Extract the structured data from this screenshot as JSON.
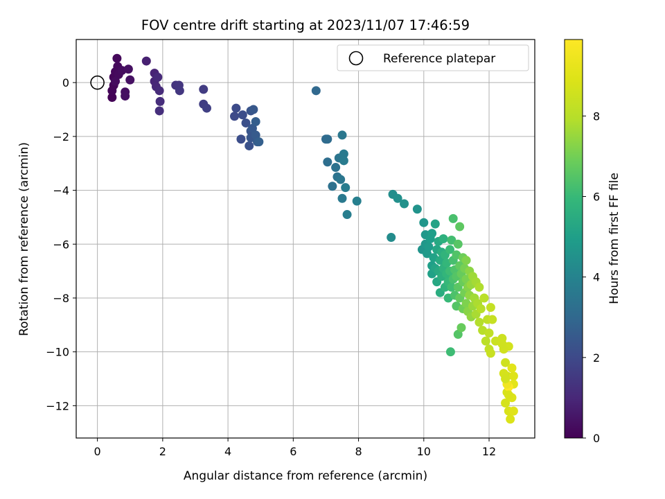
{
  "chart_data": {
    "type": "scatter",
    "title": "FOV centre drift starting at 2023/11/07 17:46:59",
    "xlabel": "Angular distance from reference (arcmin)",
    "ylabel": "Rotation from reference (arcmin)",
    "xlim": [
      -0.65,
      13.4
    ],
    "ylim": [
      -13.2,
      1.6
    ],
    "xticks": [
      0,
      2,
      4,
      6,
      8,
      10,
      12
    ],
    "xtick_labels": [
      "0",
      "2",
      "4",
      "6",
      "8",
      "10",
      "12"
    ],
    "yticks": [
      0,
      -2,
      -4,
      -6,
      -8,
      -10,
      -12
    ],
    "ytick_labels": [
      "0",
      "−2",
      "−4",
      "−6",
      "−8",
      "−10",
      "−12"
    ],
    "grid": true,
    "legend": {
      "position": "top-right",
      "entries": [
        "Reference platepar"
      ]
    },
    "reference_point": {
      "x": 0,
      "y": 0
    },
    "colorbar": {
      "label": "Hours from first FF file",
      "colormap": "viridis",
      "min": 0,
      "max": 9.9,
      "ticks": [
        0,
        2,
        4,
        6,
        8
      ],
      "tick_labels": [
        "0",
        "2",
        "4",
        "6",
        "8"
      ]
    },
    "point_columns": [
      "x",
      "y",
      "hours"
    ],
    "points": [
      [
        0.45,
        -0.55,
        0.05
      ],
      [
        0.45,
        -0.3,
        0.1
      ],
      [
        0.5,
        -0.1,
        0.12
      ],
      [
        0.5,
        0.2,
        0.15
      ],
      [
        0.55,
        0.4,
        0.18
      ],
      [
        0.6,
        0.9,
        0.2
      ],
      [
        0.62,
        0.6,
        0.22
      ],
      [
        0.65,
        0.3,
        0.25
      ],
      [
        0.55,
        0.05,
        0.28
      ],
      [
        0.75,
        0.45,
        0.3
      ],
      [
        0.85,
        -0.35,
        0.32
      ],
      [
        0.85,
        -0.5,
        0.35
      ],
      [
        0.95,
        0.5,
        0.38
      ],
      [
        1.0,
        0.1,
        0.4
      ],
      [
        1.5,
        0.8,
        0.8
      ],
      [
        1.75,
        0.35,
        0.9
      ],
      [
        1.75,
        0.05,
        0.95
      ],
      [
        1.8,
        -0.15,
        1.0
      ],
      [
        1.85,
        0.2,
        1.05
      ],
      [
        1.9,
        -0.3,
        1.1
      ],
      [
        1.92,
        -0.7,
        1.15
      ],
      [
        1.9,
        -1.05,
        1.2
      ],
      [
        2.4,
        -0.1,
        1.35
      ],
      [
        2.5,
        -0.1,
        1.4
      ],
      [
        2.52,
        -0.3,
        1.45
      ],
      [
        3.25,
        -0.25,
        1.6
      ],
      [
        3.25,
        -0.8,
        1.65
      ],
      [
        3.35,
        -0.95,
        1.7
      ],
      [
        4.2,
        -1.25,
        2.0
      ],
      [
        4.25,
        -0.95,
        2.05
      ],
      [
        4.45,
        -1.2,
        2.1
      ],
      [
        4.4,
        -2.1,
        2.15
      ],
      [
        4.55,
        -1.5,
        2.2
      ],
      [
        4.65,
        -2.35,
        2.25
      ],
      [
        4.7,
        -1.05,
        2.3
      ],
      [
        4.7,
        -1.8,
        2.35
      ],
      [
        4.7,
        -2.05,
        2.4
      ],
      [
        4.78,
        -1.0,
        2.45
      ],
      [
        4.75,
        -1.7,
        2.5
      ],
      [
        4.85,
        -1.95,
        2.55
      ],
      [
        4.9,
        -2.2,
        2.6
      ],
      [
        4.85,
        -1.45,
        2.65
      ],
      [
        4.95,
        -2.2,
        2.7
      ],
      [
        6.7,
        -0.3,
        3.0
      ],
      [
        7.0,
        -2.1,
        3.1
      ],
      [
        7.05,
        -2.1,
        3.12
      ],
      [
        7.05,
        -2.95,
        3.2
      ],
      [
        7.2,
        -3.85,
        3.3
      ],
      [
        7.3,
        -3.15,
        3.35
      ],
      [
        7.35,
        -3.5,
        3.4
      ],
      [
        7.4,
        -2.8,
        3.45
      ],
      [
        7.45,
        -3.6,
        3.5
      ],
      [
        7.5,
        -1.95,
        3.55
      ],
      [
        7.5,
        -4.3,
        3.6
      ],
      [
        7.55,
        -2.65,
        3.65
      ],
      [
        7.55,
        -2.9,
        3.7
      ],
      [
        7.6,
        -3.9,
        3.75
      ],
      [
        7.65,
        -4.9,
        3.8
      ],
      [
        7.95,
        -4.4,
        3.85
      ],
      [
        9.0,
        -5.75,
        4.3
      ],
      [
        9.05,
        -4.15,
        4.4
      ],
      [
        9.2,
        -4.3,
        4.45
      ],
      [
        9.4,
        -4.5,
        4.5
      ],
      [
        9.8,
        -4.7,
        4.55
      ],
      [
        9.95,
        -6.2,
        4.6
      ],
      [
        10.0,
        -5.2,
        4.65
      ],
      [
        10.05,
        -6.0,
        4.7
      ],
      [
        10.05,
        -5.65,
        4.75
      ],
      [
        10.1,
        -6.35,
        4.8
      ],
      [
        10.15,
        -6.1,
        4.85
      ],
      [
        10.2,
        -5.8,
        4.9
      ],
      [
        10.25,
        -5.6,
        4.95
      ],
      [
        10.25,
        -6.8,
        5.0
      ],
      [
        10.25,
        -7.1,
        5.05
      ],
      [
        10.3,
        -6.5,
        5.1
      ],
      [
        10.35,
        -5.25,
        5.15
      ],
      [
        10.35,
        -6.9,
        5.2
      ],
      [
        10.4,
        -6.2,
        5.25
      ],
      [
        10.4,
        -7.4,
        5.3
      ],
      [
        10.45,
        -5.9,
        5.35
      ],
      [
        10.45,
        -7.0,
        5.4
      ],
      [
        10.5,
        -6.6,
        5.45
      ],
      [
        10.5,
        -7.8,
        5.5
      ],
      [
        10.55,
        -6.3,
        5.55
      ],
      [
        10.55,
        -7.2,
        5.6
      ],
      [
        10.6,
        -5.8,
        5.65
      ],
      [
        10.6,
        -6.9,
        5.7
      ],
      [
        10.65,
        -7.6,
        5.75
      ],
      [
        10.65,
        -6.4,
        5.8
      ],
      [
        10.7,
        -7.1,
        5.85
      ],
      [
        10.7,
        -6.7,
        5.9
      ],
      [
        10.75,
        -7.4,
        5.95
      ],
      [
        10.75,
        -8.0,
        6.0
      ],
      [
        10.8,
        -6.2,
        6.05
      ],
      [
        10.8,
        -7.0,
        6.1
      ],
      [
        10.82,
        -10.0,
        6.1
      ],
      [
        10.85,
        -7.6,
        6.15
      ],
      [
        10.85,
        -5.85,
        6.2
      ],
      [
        10.9,
        -6.6,
        6.25
      ],
      [
        10.9,
        -7.3,
        6.3
      ],
      [
        10.9,
        -5.05,
        6.3
      ],
      [
        10.95,
        -7.9,
        6.35
      ],
      [
        10.95,
        -6.95,
        6.4
      ],
      [
        11.0,
        -6.4,
        6.45
      ],
      [
        11.0,
        -7.2,
        6.5
      ],
      [
        11.0,
        -8.3,
        6.5
      ],
      [
        11.05,
        -9.35,
        6.5
      ],
      [
        11.05,
        -6.0,
        6.55
      ],
      [
        11.05,
        -7.6,
        6.6
      ],
      [
        11.1,
        -5.35,
        6.65
      ],
      [
        11.1,
        -6.8,
        6.7
      ],
      [
        11.1,
        -8.0,
        6.75
      ],
      [
        11.15,
        -7.1,
        6.8
      ],
      [
        11.15,
        -9.1,
        6.8
      ],
      [
        11.2,
        -7.4,
        6.85
      ],
      [
        11.2,
        -6.5,
        6.9
      ],
      [
        11.2,
        -8.4,
        6.95
      ],
      [
        11.25,
        -7.8,
        7.0
      ],
      [
        11.25,
        -6.9,
        7.05
      ],
      [
        11.3,
        -7.3,
        7.1
      ],
      [
        11.3,
        -8.2,
        7.15
      ],
      [
        11.3,
        -6.6,
        7.2
      ],
      [
        11.35,
        -7.6,
        7.25
      ],
      [
        11.35,
        -8.5,
        7.3
      ],
      [
        11.4,
        -7.0,
        7.35
      ],
      [
        11.4,
        -7.9,
        7.4
      ],
      [
        11.45,
        -8.7,
        7.45
      ],
      [
        11.45,
        -7.5,
        7.5
      ],
      [
        11.5,
        -8.3,
        7.55
      ],
      [
        11.5,
        -7.2,
        7.6
      ],
      [
        11.55,
        -8.0,
        7.65
      ],
      [
        11.6,
        -7.4,
        7.7
      ],
      [
        11.6,
        -8.6,
        7.75
      ],
      [
        11.65,
        -8.2,
        7.8
      ],
      [
        11.7,
        -7.6,
        7.85
      ],
      [
        11.7,
        -8.9,
        7.9
      ],
      [
        11.75,
        -8.4,
        7.95
      ],
      [
        11.8,
        -9.2,
        8.0
      ],
      [
        11.85,
        -8.0,
        8.05
      ],
      [
        11.9,
        -9.6,
        8.1
      ],
      [
        11.95,
        -8.8,
        8.15
      ],
      [
        12.0,
        -9.3,
        8.2
      ],
      [
        12.0,
        -9.9,
        8.25
      ],
      [
        12.05,
        -8.35,
        8.3
      ],
      [
        12.1,
        -8.8,
        8.35
      ],
      [
        12.05,
        -10.05,
        8.4
      ],
      [
        12.2,
        -9.6,
        8.45
      ],
      [
        12.4,
        -9.5,
        8.5
      ],
      [
        12.5,
        -10.4,
        8.55
      ],
      [
        12.55,
        -10.9,
        8.6
      ],
      [
        12.6,
        -9.8,
        8.65
      ],
      [
        12.5,
        -11.9,
        8.7
      ],
      [
        12.55,
        -11.5,
        8.75
      ],
      [
        12.6,
        -12.2,
        8.8
      ],
      [
        12.65,
        -12.5,
        8.85
      ],
      [
        12.7,
        -11.7,
        8.9
      ],
      [
        12.75,
        -10.9,
        8.95
      ],
      [
        12.75,
        -12.2,
        9.0
      ],
      [
        12.7,
        -10.6,
        9.05
      ],
      [
        12.75,
        -11.2,
        9.1
      ],
      [
        12.6,
        -11.3,
        9.9
      ],
      [
        12.55,
        -11.2,
        9.5
      ],
      [
        12.45,
        -10.8,
        8.7
      ],
      [
        12.6,
        -11.6,
        8.8
      ],
      [
        12.5,
        -11.0,
        8.65
      ],
      [
        12.45,
        -9.9,
        8.6
      ],
      [
        12.4,
        -9.7,
        8.55
      ]
    ]
  }
}
